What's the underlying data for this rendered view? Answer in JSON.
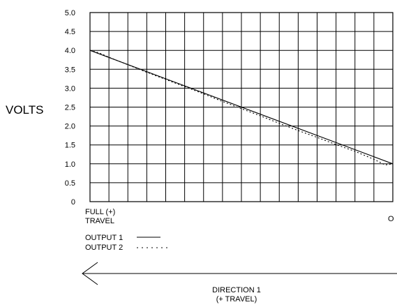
{
  "chart_data": {
    "type": "line",
    "ylabel": "VOLTS",
    "ylim": [
      0,
      5.0
    ],
    "y_ticks": [
      "0",
      "0.5",
      "1.0",
      "1.5",
      "2.0",
      "2.5",
      "3.0",
      "3.5",
      "4.0",
      "4.5",
      "5.0"
    ],
    "x_labels": {
      "left_line1": "FULL (+)",
      "left_line2": "TRAVEL",
      "right": "O"
    },
    "grid": true,
    "x_divisions": 16,
    "x_range": [
      0,
      16
    ],
    "series": [
      {
        "name": "OUTPUT 1",
        "style": "solid",
        "x": [
          0,
          16
        ],
        "y": [
          4.0,
          1.0
        ]
      },
      {
        "name": "OUTPUT 2",
        "style": "dotted",
        "x": [
          0,
          0.5,
          1,
          2,
          3,
          4,
          5,
          6,
          7,
          8,
          9,
          10,
          11,
          12,
          13,
          14,
          15,
          15.6,
          16
        ],
        "y": [
          4.0,
          3.93,
          3.82,
          3.62,
          3.42,
          3.23,
          3.04,
          2.85,
          2.65,
          2.46,
          2.27,
          2.07,
          1.88,
          1.7,
          1.51,
          1.33,
          1.12,
          0.97,
          1.0
        ]
      }
    ],
    "legend": {
      "placement": "bottom-left",
      "items": [
        "OUTPUT 1",
        "OUTPUT 2"
      ]
    },
    "direction": {
      "line1": "DIRECTION 1",
      "line2": "(+ TRAVEL)"
    }
  }
}
